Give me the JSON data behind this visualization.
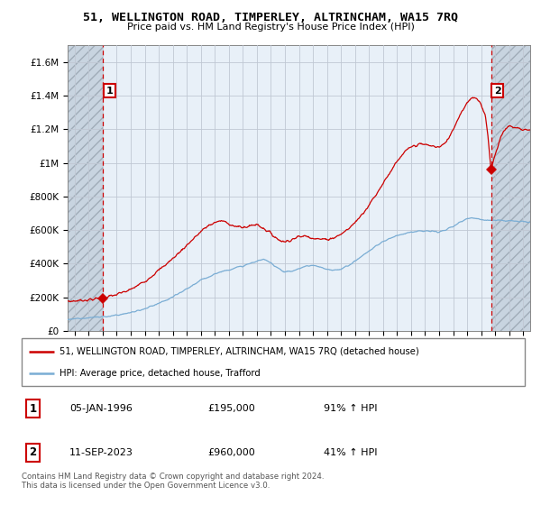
{
  "title": "51, WELLINGTON ROAD, TIMPERLEY, ALTRINCHAM, WA15 7RQ",
  "subtitle": "Price paid vs. HM Land Registry's House Price Index (HPI)",
  "sale1_date": "05-JAN-1996",
  "sale1_price": 195000,
  "sale1_hpi": "91% ↑ HPI",
  "sale2_date": "11-SEP-2023",
  "sale2_price": 960000,
  "sale2_hpi": "41% ↑ HPI",
  "legend1": "51, WELLINGTON ROAD, TIMPERLEY, ALTRINCHAM, WA15 7RQ (detached house)",
  "legend2": "HPI: Average price, detached house, Trafford",
  "footnote": "Contains HM Land Registry data © Crown copyright and database right 2024.\nThis data is licensed under the Open Government Licence v3.0.",
  "red_color": "#cc0000",
  "blue_color": "#7aadd4",
  "chart_bg": "#e8f0f8",
  "hatch_bg": "#d0d8e0",
  "ylim_max": 1700000,
  "yticks": [
    0,
    200000,
    400000,
    600000,
    800000,
    1000000,
    1200000,
    1400000,
    1600000
  ],
  "ytick_labels": [
    "£0",
    "£200K",
    "£400K",
    "£600K",
    "£800K",
    "£1M",
    "£1.2M",
    "£1.4M",
    "£1.6M"
  ],
  "xmin": 1993.5,
  "xmax": 2026.5,
  "sale1_x": 1996.02,
  "sale2_x": 2023.71
}
